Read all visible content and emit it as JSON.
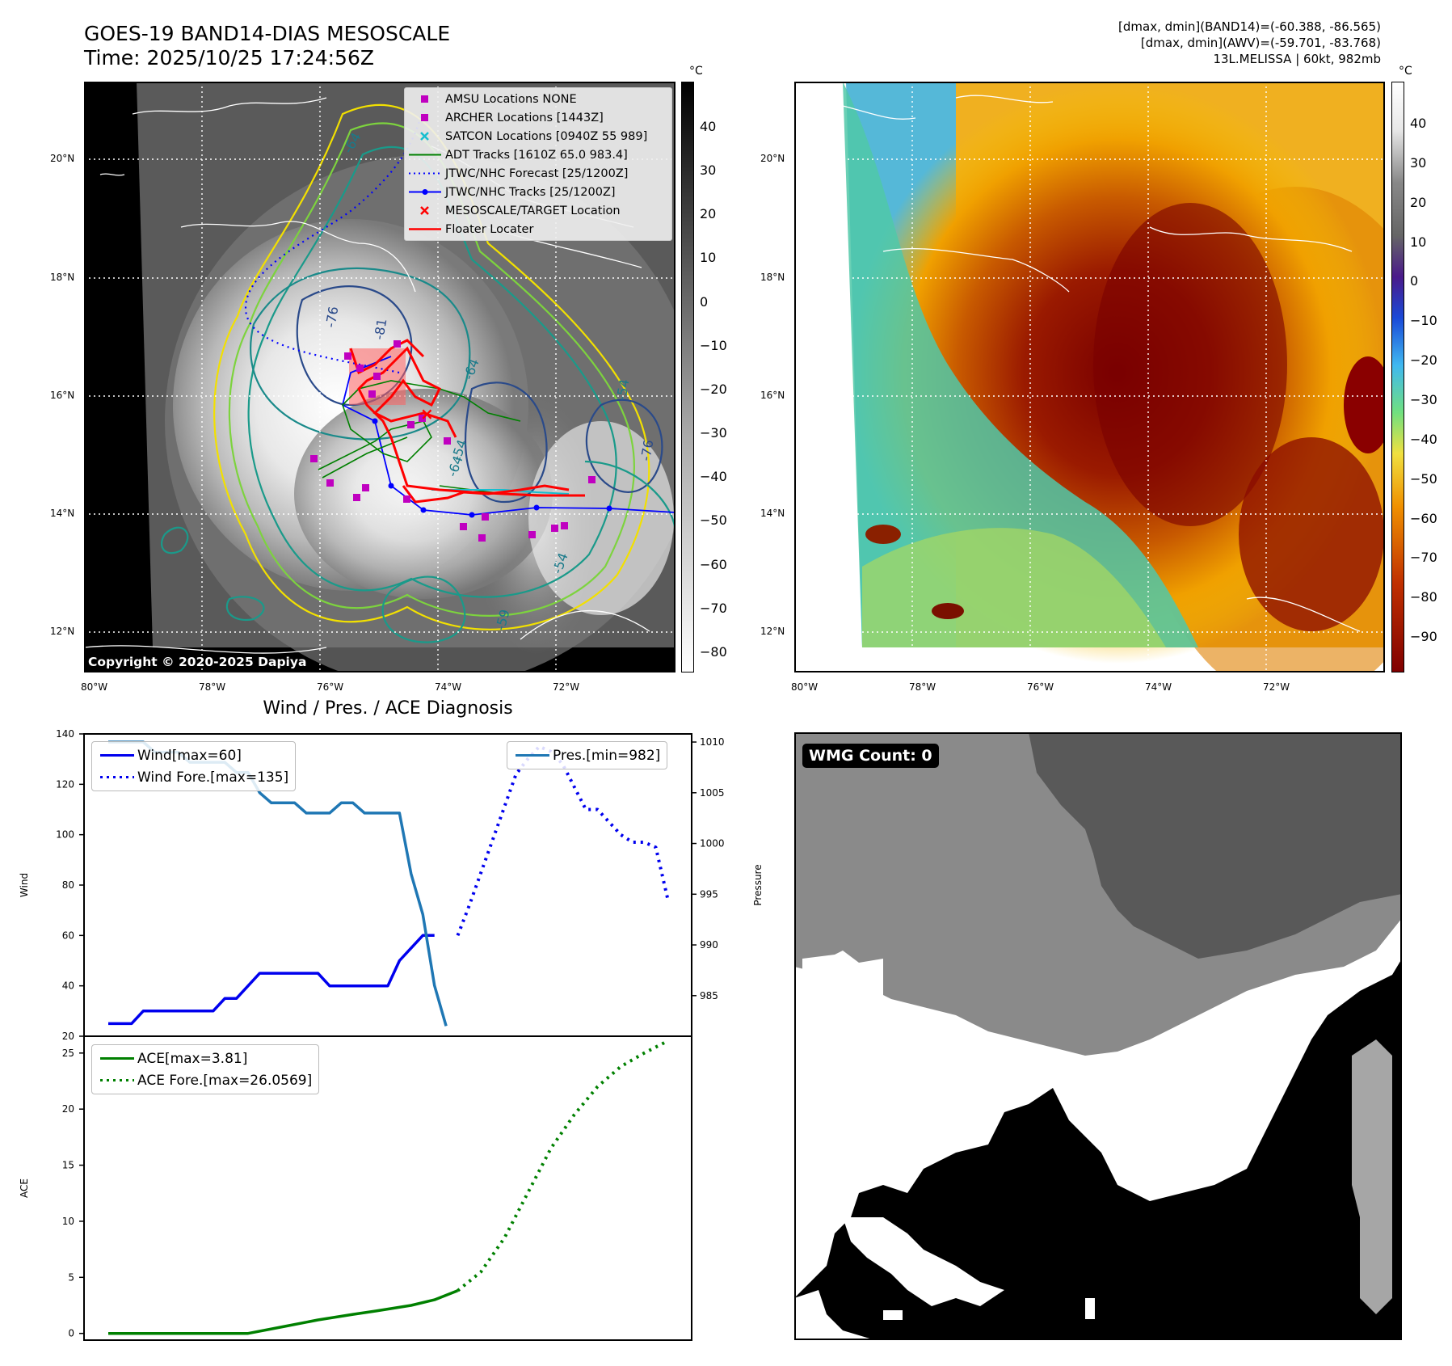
{
  "header": {
    "title_line1": "GOES-19 BAND14-DIAS MESOSCALE",
    "title_line2": "Time: 2025/10/25 17:24:56Z",
    "right_line1": "[dmax, dmin](BAND14)=(-60.388, -86.565)",
    "right_line2": "[dmax, dmin](AWV)=(-59.701, -83.768)",
    "right_line3": "13L.MELISSA | 60kt, 982mb"
  },
  "map_axes": {
    "lon_labels": [
      "80°W",
      "78°W",
      "76°W",
      "74°W",
      "72°W"
    ],
    "lat_labels": [
      "20°N",
      "18°N",
      "16°N",
      "14°N",
      "12°N"
    ]
  },
  "ir_panel": {
    "colorbar_unit": "°C",
    "colorbar_ticks": [
      "40",
      "30",
      "20",
      "10",
      "0",
      "−10",
      "−20",
      "−30",
      "−40",
      "−50",
      "−60",
      "−70",
      "−80"
    ],
    "copyright": "Copyright © 2020-2025 Dapiya",
    "contour_labels": [
      "-64",
      "-76",
      "-81",
      "-64",
      "-76",
      "-54",
      "-59",
      "-54",
      "-64",
      "-54"
    ],
    "legend": [
      {
        "label": "AMSU Locations NONE",
        "color": "#c000c0",
        "marker": "square"
      },
      {
        "label": "ARCHER Locations [1443Z]",
        "color": "#c000c0",
        "marker": "square"
      },
      {
        "label": "SATCON Locations [0940Z 55 989]",
        "color": "#17becf",
        "marker": "x"
      },
      {
        "label": "ADT Tracks [1610Z 65.0 983.4]",
        "color": "#008000",
        "marker": "line"
      },
      {
        "label": "JTWC/NHC Forecast [25/1200Z]",
        "color": "#0000ff",
        "marker": "dotted"
      },
      {
        "label": "JTWC/NHC Tracks [25/1200Z]",
        "color": "#0000ff",
        "marker": "line-dot"
      },
      {
        "label": "MESOSCALE/TARGET Location",
        "color": "#ff0000",
        "marker": "x"
      },
      {
        "label": "Floater Locater",
        "color": "#ff0000",
        "marker": "line"
      }
    ]
  },
  "awv_panel": {
    "colorbar_unit": "°C",
    "colorbar_ticks": [
      "40",
      "30",
      "20",
      "10",
      "0",
      "−10",
      "−20",
      "−30",
      "−40",
      "−50",
      "−60",
      "−70",
      "−80",
      "−90"
    ]
  },
  "diag_title": "Wind / Pres. / ACE Diagnosis",
  "wmg_panel": {
    "count_label": "WMG Count: 0"
  },
  "chart_data": [
    {
      "type": "line",
      "title": "Wind / Pres. / ACE Diagnosis",
      "ylabel": "Wind",
      "ylim": [
        20,
        140
      ],
      "yticks": [
        20,
        40,
        60,
        80,
        100,
        120,
        140
      ],
      "y2label": "Pressure",
      "y2lim": [
        981,
        1010.8
      ],
      "y2ticks": [
        985,
        990,
        995,
        1000,
        1005,
        1010
      ],
      "x_steps": 49,
      "series": [
        {
          "name": "Wind[max=60]",
          "axis": "left",
          "style": "solid",
          "color": "#0000ee",
          "x": [
            0,
            1,
            2,
            3,
            4,
            5,
            6,
            7,
            8,
            9,
            10,
            11,
            12,
            13,
            14,
            15,
            16,
            17,
            18,
            19,
            20,
            21,
            22,
            23,
            24,
            25,
            26,
            27,
            28,
            29,
            30
          ],
          "values": [
            25,
            25,
            25,
            30,
            30,
            30,
            30,
            30,
            30,
            30,
            35,
            35,
            40,
            45,
            45,
            45,
            45,
            45,
            45,
            40,
            40,
            40,
            40,
            40,
            40,
            50,
            55,
            60,
            60,
            null,
            null
          ]
        },
        {
          "name": "Wind Fore.[max=135]",
          "axis": "left",
          "style": "dotted",
          "color": "#0000ee",
          "x": [
            30,
            31,
            32,
            33,
            34,
            35,
            36,
            37,
            38,
            39,
            40,
            41,
            42,
            43,
            44,
            45,
            46,
            47,
            48
          ],
          "values": [
            60,
            72,
            85,
            98,
            111,
            124,
            130,
            135,
            133,
            128,
            119,
            110,
            110,
            105,
            100,
            97,
            97,
            95,
            75
          ]
        },
        {
          "name": "Pres.[min=982]",
          "axis": "right",
          "style": "solid",
          "color": "#1f77b4",
          "x": [
            0,
            1,
            2,
            3,
            4,
            5,
            6,
            7,
            8,
            9,
            10,
            11,
            12,
            13,
            14,
            15,
            16,
            17,
            18,
            19,
            20,
            21,
            22,
            23,
            24,
            25,
            26,
            27,
            28,
            29
          ],
          "values": [
            1010,
            1010,
            1010,
            1010,
            1009,
            1009,
            1009,
            1008,
            1008,
            1008,
            1008,
            1007,
            1007,
            1005,
            1004,
            1004,
            1004,
            1003,
            1003,
            1003,
            1004,
            1004,
            1003,
            1003,
            1003,
            1003,
            997,
            993,
            986,
            982
          ]
        }
      ]
    },
    {
      "type": "line",
      "ylabel": "ACE",
      "ylim": [
        -0.6,
        26.5
      ],
      "yticks": [
        0,
        5,
        10,
        15,
        20,
        25
      ],
      "x_steps": 49,
      "series": [
        {
          "name": "ACE[max=3.81]",
          "style": "solid",
          "color": "#008000",
          "x": [
            0,
            4,
            8,
            12,
            15,
            18,
            21,
            23,
            26,
            28,
            30
          ],
          "values": [
            0,
            0,
            0,
            0,
            0.6,
            1.2,
            1.7,
            2.0,
            2.5,
            3.0,
            3.81
          ]
        },
        {
          "name": "ACE Fore.[max=26.0569]",
          "style": "dotted",
          "color": "#008000",
          "x": [
            30,
            32,
            34,
            36,
            38,
            40,
            42,
            44,
            46,
            48
          ],
          "values": [
            3.81,
            5.5,
            8.5,
            12.5,
            16.5,
            19.5,
            22.0,
            23.8,
            25.0,
            26.06
          ]
        }
      ]
    }
  ]
}
